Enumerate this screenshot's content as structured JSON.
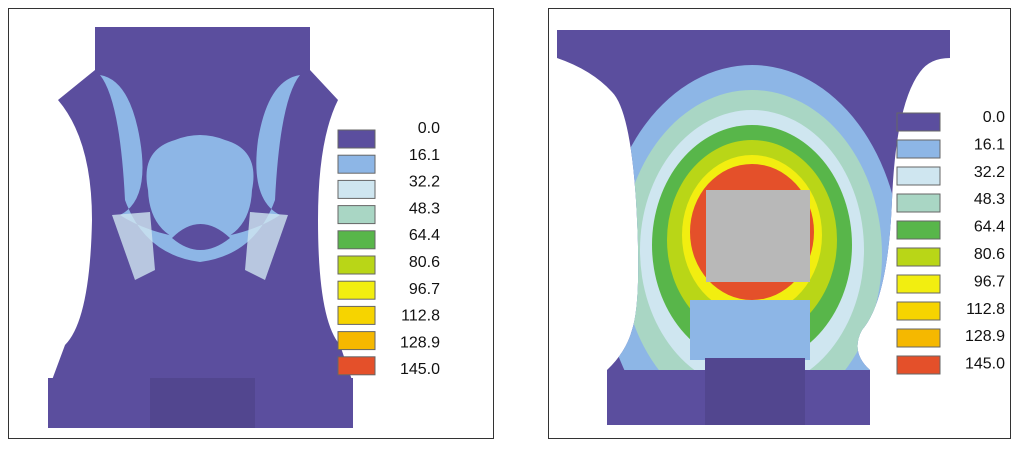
{
  "panels": [
    {
      "legend": [
        "0.0",
        "16.1",
        "32.2",
        "48.3",
        "64.4",
        "80.6",
        "96.7",
        "112.8",
        "128.9",
        "145.0"
      ]
    },
    {
      "legend": [
        "0.0",
        "16.1",
        "32.2",
        "48.3",
        "64.4",
        "80.6",
        "96.7",
        "112.8",
        "128.9",
        "145.0"
      ]
    }
  ],
  "legend_colors": [
    "#5b4e9e",
    "#8db6e6",
    "#cfe6f0",
    "#a9d6c4",
    "#58b64a",
    "#b9d617",
    "#f2ee10",
    "#f6d400",
    "#f5b800",
    "#e4502a"
  ]
}
